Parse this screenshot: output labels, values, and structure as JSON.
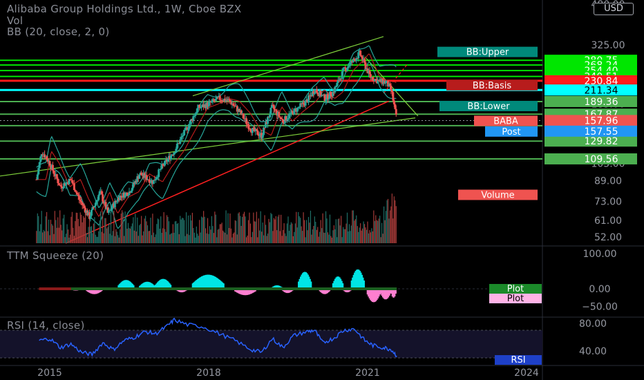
{
  "header": {
    "title": "Alibaba Group Holdings Ltd., 1W, Cboe BZX",
    "vol": "Vol",
    "bb": "BB (20, close, 2, 0)",
    "currency": "USD"
  },
  "panes": {
    "ttm_title": "TTM Squeeze (20)",
    "rsi_title": "RSI (14, close)"
  },
  "colors": {
    "green_line": "#00e600",
    "red_line": "#ff1a1a",
    "cyan_line": "#00ffff",
    "candle_up": "#26a69a",
    "candle_down": "#ef5350",
    "trend_red": "#ff2020",
    "trend_green": "#7fd13b",
    "rsi_line": "#2962ff",
    "squeeze_cyan": "#00e5e5",
    "squeeze_pink": "#ff7fd0"
  },
  "chart_data": {
    "type": "candlestick",
    "symbol": "BABA",
    "interval": "1W",
    "x_ticks": [
      "2015",
      "2018",
      "2021",
      "2024"
    ],
    "y_ticks": [
      "480.00",
      "325.00",
      "185.00",
      "105.00",
      "89.00",
      "73.00",
      "61.00",
      "52.00"
    ],
    "price_scale": "log",
    "ylim": [
      44,
      480
    ],
    "close_path": [
      {
        "t": 2014.75,
        "v": 90
      },
      {
        "t": 2014.85,
        "v": 118
      },
      {
        "t": 2015.0,
        "v": 105
      },
      {
        "t": 2015.2,
        "v": 84
      },
      {
        "t": 2015.4,
        "v": 90
      },
      {
        "t": 2015.55,
        "v": 75
      },
      {
        "t": 2015.75,
        "v": 63
      },
      {
        "t": 2015.95,
        "v": 80
      },
      {
        "t": 2016.1,
        "v": 65
      },
      {
        "t": 2016.3,
        "v": 76
      },
      {
        "t": 2016.5,
        "v": 80
      },
      {
        "t": 2016.7,
        "v": 95
      },
      {
        "t": 2016.95,
        "v": 88
      },
      {
        "t": 2017.1,
        "v": 100
      },
      {
        "t": 2017.35,
        "v": 118
      },
      {
        "t": 2017.55,
        "v": 142
      },
      {
        "t": 2017.8,
        "v": 178
      },
      {
        "t": 2018.0,
        "v": 185
      },
      {
        "t": 2018.2,
        "v": 195
      },
      {
        "t": 2018.4,
        "v": 190
      },
      {
        "t": 2018.6,
        "v": 170
      },
      {
        "t": 2018.8,
        "v": 145
      },
      {
        "t": 2019.0,
        "v": 137
      },
      {
        "t": 2019.2,
        "v": 180
      },
      {
        "t": 2019.4,
        "v": 157
      },
      {
        "t": 2019.6,
        "v": 172
      },
      {
        "t": 2019.85,
        "v": 190
      },
      {
        "t": 2020.0,
        "v": 212
      },
      {
        "t": 2020.2,
        "v": 195
      },
      {
        "t": 2020.35,
        "v": 207
      },
      {
        "t": 2020.55,
        "v": 255
      },
      {
        "t": 2020.75,
        "v": 282
      },
      {
        "t": 2020.85,
        "v": 300
      },
      {
        "t": 2020.95,
        "v": 268
      },
      {
        "t": 2021.05,
        "v": 240
      },
      {
        "t": 2021.2,
        "v": 230
      },
      {
        "t": 2021.35,
        "v": 228
      },
      {
        "t": 2021.45,
        "v": 210
      },
      {
        "t": 2021.55,
        "v": 157.96
      }
    ],
    "levels": [
      {
        "label": "280.75",
        "value": 280.75,
        "color": "#00e600",
        "kind": "green"
      },
      {
        "label": "268.24",
        "value": 268.24,
        "color": "#00e600",
        "kind": "green"
      },
      {
        "label": "254.40",
        "value": 254.4,
        "color": "#00e600",
        "kind": "green"
      },
      {
        "label": "240.51",
        "value": 240.51,
        "color": "#00e600",
        "kind": "green"
      },
      {
        "label": "230.84",
        "value": 230.84,
        "color": "#ff1a1a",
        "kind": "red"
      },
      {
        "label": "211.34",
        "value": 211.34,
        "color": "#00ffff",
        "kind": "cyan"
      },
      {
        "label": "189.36",
        "value": 189.36,
        "color": "#4caf50",
        "kind": "green"
      },
      {
        "label": "167.87",
        "value": 167.87,
        "color": "#4caf50",
        "kind": "green"
      },
      {
        "label": "150.47",
        "value": 150.47,
        "color": "#4caf50",
        "kind": "green"
      },
      {
        "label": "129.82",
        "value": 129.82,
        "color": "#4caf50",
        "kind": "green"
      },
      {
        "label": "109.56",
        "value": 109.56,
        "color": "#4caf50",
        "kind": "green"
      }
    ],
    "tags": [
      {
        "label": "BB:Upper",
        "color": "#00897b"
      },
      {
        "label": "BB:Basis",
        "color": "#b71c1c"
      },
      {
        "label": "BB:Lower",
        "color": "#00897b"
      },
      {
        "label": "BABA",
        "color": "#ef5350"
      },
      {
        "label": "Post",
        "color": "#2196f3"
      },
      {
        "label": "Volume",
        "color": "#ef5350"
      }
    ],
    "last_price": "157.96",
    "post_price": "157.55",
    "ttm": {
      "y_ticks": [
        "100.00",
        "0.00",
        "−50.00"
      ],
      "ylim": [
        -70,
        115
      ],
      "legend": [
        "Plot",
        "Plot"
      ],
      "segments": [
        {
          "t0": 2014.8,
          "t1": 2015.4,
          "v": -3,
          "c": "#b71c1c"
        },
        {
          "t0": 2015.4,
          "t1": 2015.6,
          "v": -5,
          "c": "#ff7fd0"
        },
        {
          "t0": 2015.7,
          "t1": 2016.0,
          "v": -15,
          "c": "#ff7fd0"
        },
        {
          "t0": 2016.3,
          "t1": 2016.6,
          "v": 25,
          "c": "#00e5e5"
        },
        {
          "t0": 2016.7,
          "t1": 2017.0,
          "v": 20,
          "c": "#00e5e5"
        },
        {
          "t0": 2017.0,
          "t1": 2017.3,
          "v": 28,
          "c": "#00e5e5"
        },
        {
          "t0": 2017.4,
          "t1": 2017.6,
          "v": -10,
          "c": "#ff7fd0"
        },
        {
          "t0": 2017.7,
          "t1": 2018.3,
          "v": 40,
          "c": "#00e5e5"
        },
        {
          "t0": 2018.5,
          "t1": 2018.9,
          "v": -18,
          "c": "#ff7fd0"
        },
        {
          "t0": 2019.2,
          "t1": 2019.4,
          "v": 10,
          "c": "#00e5e5"
        },
        {
          "t0": 2019.4,
          "t1": 2019.6,
          "v": -12,
          "c": "#ff7fd0"
        },
        {
          "t0": 2019.7,
          "t1": 2019.95,
          "v": 48,
          "c": "#00e5e5"
        },
        {
          "t0": 2020.1,
          "t1": 2020.3,
          "v": -15,
          "c": "#ff7fd0"
        },
        {
          "t0": 2020.35,
          "t1": 2020.55,
          "v": 35,
          "c": "#00e5e5"
        },
        {
          "t0": 2020.55,
          "t1": 2020.7,
          "v": -10,
          "c": "#ff7fd0"
        },
        {
          "t0": 2020.7,
          "t1": 2020.95,
          "v": 55,
          "c": "#00e5e5"
        },
        {
          "t0": 2021.0,
          "t1": 2021.25,
          "v": -38,
          "c": "#ff7fd0"
        },
        {
          "t0": 2021.25,
          "t1": 2021.45,
          "v": -30,
          "c": "#ff7fd0"
        },
        {
          "t0": 2021.45,
          "t1": 2021.55,
          "v": -25,
          "c": "#ff7fd0"
        }
      ]
    },
    "rsi": {
      "y_ticks": [
        "80.00",
        "40.00"
      ],
      "ylim": [
        25,
        92
      ],
      "legend": "RSI",
      "points": [
        {
          "t": 2014.8,
          "v": 55
        },
        {
          "t": 2015.0,
          "v": 58
        },
        {
          "t": 2015.2,
          "v": 45
        },
        {
          "t": 2015.4,
          "v": 50
        },
        {
          "t": 2015.6,
          "v": 38
        },
        {
          "t": 2015.8,
          "v": 35
        },
        {
          "t": 2016.0,
          "v": 52
        },
        {
          "t": 2016.2,
          "v": 42
        },
        {
          "t": 2016.4,
          "v": 55
        },
        {
          "t": 2016.6,
          "v": 60
        },
        {
          "t": 2016.8,
          "v": 68
        },
        {
          "t": 2017.0,
          "v": 65
        },
        {
          "t": 2017.2,
          "v": 75
        },
        {
          "t": 2017.35,
          "v": 85
        },
        {
          "t": 2017.6,
          "v": 78
        },
        {
          "t": 2017.9,
          "v": 75
        },
        {
          "t": 2018.2,
          "v": 65
        },
        {
          "t": 2018.5,
          "v": 55
        },
        {
          "t": 2018.8,
          "v": 42
        },
        {
          "t": 2019.0,
          "v": 38
        },
        {
          "t": 2019.2,
          "v": 58
        },
        {
          "t": 2019.4,
          "v": 45
        },
        {
          "t": 2019.6,
          "v": 62
        },
        {
          "t": 2019.85,
          "v": 68
        },
        {
          "t": 2020.0,
          "v": 70
        },
        {
          "t": 2020.15,
          "v": 52
        },
        {
          "t": 2020.35,
          "v": 58
        },
        {
          "t": 2020.55,
          "v": 70
        },
        {
          "t": 2020.75,
          "v": 72
        },
        {
          "t": 2020.95,
          "v": 55
        },
        {
          "t": 2021.1,
          "v": 48
        },
        {
          "t": 2021.3,
          "v": 45
        },
        {
          "t": 2021.45,
          "v": 42
        },
        {
          "t": 2021.55,
          "v": 33
        }
      ]
    }
  }
}
